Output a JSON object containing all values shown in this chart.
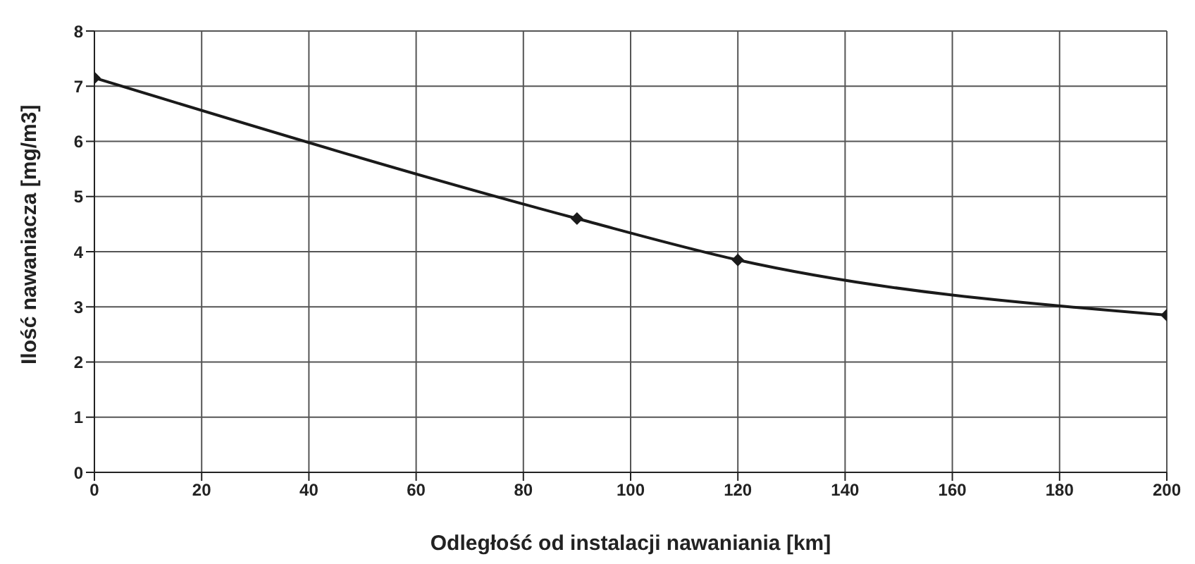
{
  "chart_data": {
    "type": "line",
    "xlabel": "Odległość od instalacji nawaniania [km]",
    "ylabel": "Ilość nawaniacza [mg/m3]",
    "x": [
      0,
      90,
      120,
      200
    ],
    "series": [
      {
        "color": "#1a1a1a",
        "values": [
          7.15,
          4.6,
          3.85,
          2.85
        ]
      }
    ],
    "xlim": [
      0,
      200
    ],
    "xticks": [
      0,
      20,
      40,
      60,
      80,
      100,
      120,
      140,
      160,
      180,
      200
    ],
    "ylim": [
      0,
      8
    ],
    "yticks": [
      0,
      1,
      2,
      3,
      4,
      5,
      6,
      7,
      8
    ],
    "grid": true,
    "marker": "diamond"
  }
}
